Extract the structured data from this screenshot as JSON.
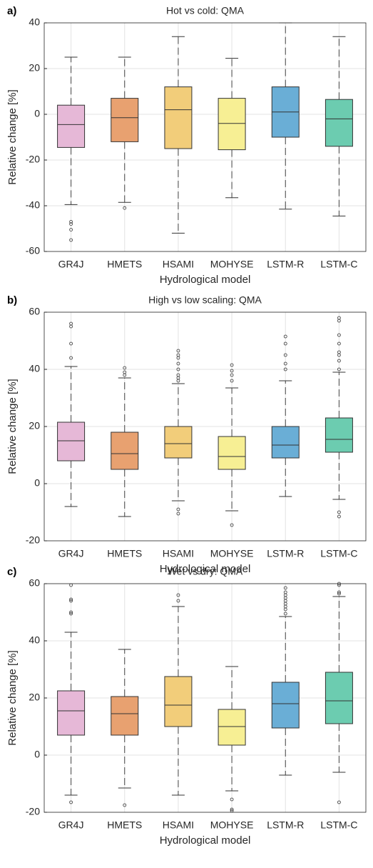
{
  "chart_data": [
    {
      "type": "box",
      "panel_label": "a)",
      "title": "Hot vs cold: QMA",
      "x_label": "Hydrological model",
      "y_label": "Relative change [%]",
      "categories": [
        "GR4J",
        "HMETS",
        "HSAMI",
        "MOHYSE",
        "LSTM-R",
        "LSTM-C"
      ],
      "colors": [
        "#e6b8d7",
        "#e8a170",
        "#f2cd7a",
        "#f7ef94",
        "#6aaed6",
        "#6cccb0"
      ],
      "boxes": [
        {
          "whislo": -39.5,
          "q1": -14.5,
          "med": -4.5,
          "q3": 4,
          "whishi": 25,
          "fliers": [
            -47,
            -48,
            -50.5,
            -55
          ]
        },
        {
          "whislo": -38.5,
          "q1": -12,
          "med": -1.5,
          "q3": 7,
          "whishi": 25,
          "fliers": [
            -41
          ]
        },
        {
          "whislo": -52,
          "q1": -15,
          "med": 2,
          "q3": 12,
          "whishi": 34,
          "fliers": []
        },
        {
          "whislo": -36.5,
          "q1": -15.5,
          "med": -4,
          "q3": 7,
          "whishi": 24.5,
          "fliers": []
        },
        {
          "whislo": -41.5,
          "q1": -10,
          "med": 1,
          "q3": 12,
          "whishi": 40,
          "fliers": []
        },
        {
          "whislo": -44.5,
          "q1": -14,
          "med": -2,
          "q3": 6.5,
          "whishi": 34,
          "fliers": []
        }
      ],
      "ylim": [
        -60,
        40
      ],
      "yticks": [
        -60,
        -40,
        -20,
        0,
        20,
        40
      ],
      "grid": true
    },
    {
      "type": "box",
      "panel_label": "b)",
      "title": "High vs low scaling: QMA",
      "x_label": "Hydrological model",
      "y_label": "Relative change [%]",
      "categories": [
        "GR4J",
        "HMETS",
        "HSAMI",
        "MOHYSE",
        "LSTM-R",
        "LSTM-C"
      ],
      "colors": [
        "#e6b8d7",
        "#e8a170",
        "#f2cd7a",
        "#f7ef94",
        "#6aaed6",
        "#6cccb0"
      ],
      "boxes": [
        {
          "whislo": -8,
          "q1": 8,
          "med": 15,
          "q3": 21.5,
          "whishi": 41,
          "fliers": [
            44,
            49,
            55,
            56
          ]
        },
        {
          "whislo": -11.5,
          "q1": 5,
          "med": 10.5,
          "q3": 18,
          "whishi": 37,
          "fliers": [
            38,
            39,
            40.5
          ]
        },
        {
          "whislo": -6,
          "q1": 9,
          "med": 14,
          "q3": 20,
          "whishi": 35,
          "fliers": [
            -9,
            -10.5,
            36,
            37,
            38,
            40,
            42,
            44,
            45,
            46.5
          ]
        },
        {
          "whislo": -9.5,
          "q1": 5,
          "med": 9.5,
          "q3": 16.5,
          "whishi": 33.5,
          "fliers": [
            -14.5,
            36,
            38,
            39.5,
            41.5
          ]
        },
        {
          "whislo": -4.5,
          "q1": 9,
          "med": 13.5,
          "q3": 20,
          "whishi": 36,
          "fliers": [
            40,
            42,
            45,
            49,
            51.5
          ]
        },
        {
          "whislo": -5.5,
          "q1": 11,
          "med": 15.5,
          "q3": 23,
          "whishi": 39,
          "fliers": [
            -10,
            -11.5,
            40,
            43,
            45,
            46,
            49,
            52,
            57,
            58
          ]
        }
      ],
      "ylim": [
        -20,
        60
      ],
      "yticks": [
        -20,
        0,
        20,
        40,
        60
      ],
      "grid": true
    },
    {
      "type": "box",
      "panel_label": "c)",
      "title": "Wet vs dry: QMA",
      "x_label": "Hydrological model",
      "y_label": "Relative change [%]",
      "categories": [
        "GR4J",
        "HMETS",
        "HSAMI",
        "MOHYSE",
        "LSTM-R",
        "LSTM-C"
      ],
      "colors": [
        "#e6b8d7",
        "#e8a170",
        "#f2cd7a",
        "#f7ef94",
        "#6aaed6",
        "#6cccb0"
      ],
      "boxes": [
        {
          "whislo": -14,
          "q1": 7,
          "med": 15.5,
          "q3": 22.5,
          "whishi": 43,
          "fliers": [
            -16.5,
            49.5,
            50,
            54,
            54.5,
            59.5
          ]
        },
        {
          "whislo": -11.5,
          "q1": 7,
          "med": 14.5,
          "q3": 20.5,
          "whishi": 37,
          "fliers": [
            -17.5
          ]
        },
        {
          "whislo": -14,
          "q1": 10,
          "med": 17.5,
          "q3": 27.5,
          "whishi": 52,
          "fliers": [
            54,
            56
          ]
        },
        {
          "whislo": -12.5,
          "q1": 3.5,
          "med": 10,
          "q3": 16,
          "whishi": 31,
          "fliers": [
            -15.5,
            -19,
            -19.5
          ]
        },
        {
          "whislo": -7,
          "q1": 9.5,
          "med": 18,
          "q3": 25.5,
          "whishi": 48.5,
          "fliers": [
            49.5,
            51,
            52,
            53,
            54,
            55,
            56,
            57,
            58.5
          ]
        },
        {
          "whislo": -6,
          "q1": 11,
          "med": 19,
          "q3": 29,
          "whishi": 55.5,
          "fliers": [
            -16.5,
            56.5,
            57,
            59.5,
            60
          ]
        }
      ],
      "ylim": [
        -20,
        60
      ],
      "yticks": [
        -20,
        0,
        20,
        40,
        60
      ],
      "grid": true
    }
  ]
}
